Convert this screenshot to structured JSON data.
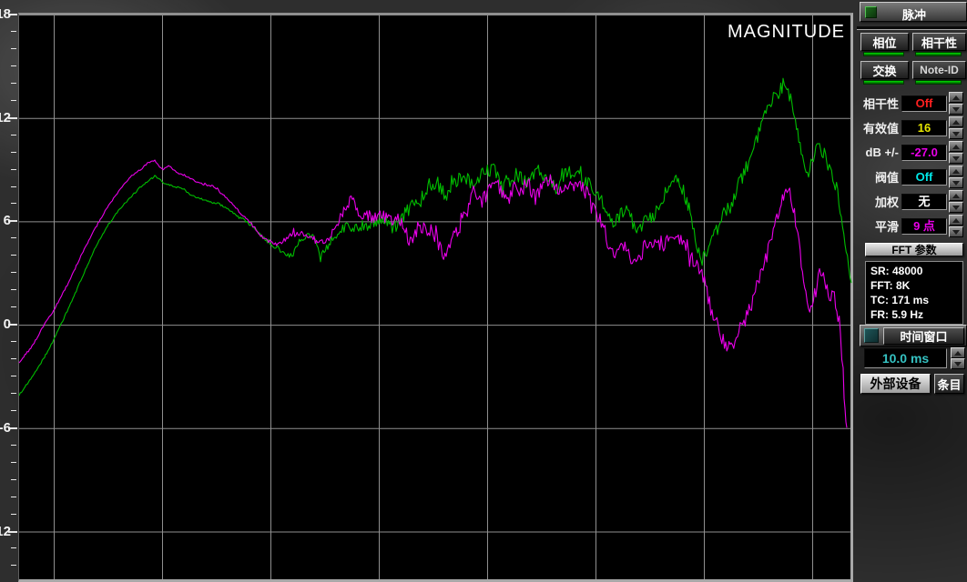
{
  "plot": {
    "title": "MAGNITUDE"
  },
  "chart_data": {
    "type": "line",
    "title": "MAGNITUDE",
    "grid": true,
    "legend": "none",
    "x_axis": {
      "scale": "log-frequency",
      "tick_labels_visible": false,
      "gridline_count": 8
    },
    "y_axis": {
      "unit": "dB",
      "major_tick_values": [
        18,
        12,
        6,
        0,
        -6,
        -12
      ],
      "major_step_db": 6,
      "minor_step_db": 1,
      "labels_clipped_to_last_digit": true
    },
    "series": [
      {
        "name": "magnitude-trace-green",
        "color": "#00bd00",
        "points_x_db": [
          [
            21,
            -4.0
          ],
          [
            35,
            -3.0
          ],
          [
            50,
            -1.7
          ],
          [
            60,
            -0.7
          ],
          [
            75,
            1.0
          ],
          [
            90,
            2.8
          ],
          [
            105,
            4.6
          ],
          [
            118,
            5.8
          ],
          [
            130,
            6.7
          ],
          [
            142,
            7.4
          ],
          [
            155,
            8.1
          ],
          [
            165,
            8.5
          ],
          [
            170,
            8.7
          ],
          [
            180,
            8.3
          ],
          [
            190,
            8.1
          ],
          [
            200,
            8.0
          ],
          [
            210,
            7.6
          ],
          [
            220,
            7.4
          ],
          [
            230,
            7.2
          ],
          [
            240,
            7.1
          ],
          [
            250,
            6.8
          ],
          [
            260,
            6.4
          ],
          [
            270,
            6.1
          ],
          [
            280,
            5.6
          ],
          [
            290,
            5.1
          ],
          [
            300,
            4.7
          ],
          [
            308,
            4.4
          ],
          [
            315,
            4.1
          ],
          [
            322,
            4.2
          ],
          [
            330,
            5.1
          ],
          [
            338,
            5.3
          ],
          [
            345,
            5.1
          ],
          [
            352,
            3.9
          ],
          [
            360,
            4.7
          ],
          [
            368,
            5.3
          ],
          [
            375,
            5.6
          ],
          [
            382,
            5.9
          ],
          [
            390,
            5.6
          ],
          [
            398,
            5.8
          ],
          [
            405,
            5.9
          ],
          [
            412,
            6.1
          ],
          [
            420,
            6.3
          ],
          [
            428,
            6.1
          ],
          [
            435,
            5.7
          ],
          [
            442,
            6.3
          ],
          [
            450,
            6.9
          ],
          [
            458,
            7.3
          ],
          [
            465,
            7.7
          ],
          [
            470,
            8.1
          ],
          [
            478,
            8.4
          ],
          [
            485,
            8.0
          ],
          [
            492,
            7.6
          ],
          [
            500,
            8.4
          ],
          [
            508,
            8.8
          ],
          [
            515,
            8.4
          ],
          [
            522,
            8.0
          ],
          [
            530,
            8.9
          ],
          [
            538,
            9.1
          ],
          [
            545,
            9.0
          ],
          [
            552,
            7.9
          ],
          [
            560,
            8.5
          ],
          [
            568,
            8.8
          ],
          [
            575,
            8.5
          ],
          [
            582,
            8.3
          ],
          [
            590,
            9.1
          ],
          [
            598,
            8.8
          ],
          [
            605,
            8.4
          ],
          [
            612,
            8.0
          ],
          [
            620,
            8.8
          ],
          [
            628,
            9.0
          ],
          [
            635,
            8.7
          ],
          [
            642,
            8.4
          ],
          [
            650,
            8.0
          ],
          [
            658,
            7.6
          ],
          [
            665,
            6.5
          ],
          [
            672,
            6.0
          ],
          [
            680,
            6.4
          ],
          [
            688,
            6.7
          ],
          [
            695,
            6.0
          ],
          [
            702,
            5.7
          ],
          [
            710,
            6.1
          ],
          [
            718,
            6.5
          ],
          [
            725,
            7.3
          ],
          [
            732,
            7.8
          ],
          [
            740,
            8.4
          ],
          [
            745,
            8.5
          ],
          [
            752,
            7.6
          ],
          [
            758,
            6.7
          ],
          [
            765,
            4.7
          ],
          [
            770,
            3.6
          ],
          [
            776,
            4.2
          ],
          [
            782,
            5.1
          ],
          [
            788,
            5.6
          ],
          [
            795,
            6.5
          ],
          [
            802,
            6.9
          ],
          [
            810,
            8.1
          ],
          [
            818,
            9.0
          ],
          [
            825,
            9.7
          ],
          [
            832,
            10.9
          ],
          [
            840,
            12.1
          ],
          [
            848,
            13.1
          ],
          [
            855,
            13.5
          ],
          [
            860,
            14.0
          ],
          [
            863,
            14.1
          ],
          [
            867,
            13.4
          ],
          [
            871,
            12.6
          ],
          [
            876,
            11.2
          ],
          [
            880,
            10.2
          ],
          [
            884,
            9.3
          ],
          [
            888,
            9.0
          ],
          [
            892,
            9.5
          ],
          [
            896,
            10.1
          ],
          [
            900,
            10.5
          ],
          [
            904,
            10.1
          ],
          [
            908,
            9.5
          ],
          [
            912,
            8.9
          ],
          [
            916,
            8.3
          ],
          [
            920,
            7.8
          ],
          [
            924,
            6.5
          ],
          [
            928,
            5.1
          ],
          [
            932,
            3.6
          ],
          [
            935,
            2.5
          ]
        ]
      },
      {
        "name": "magnitude-trace-magenta",
        "color": "#ea00ea",
        "points_x_db": [
          [
            21,
            -2.1
          ],
          [
            35,
            -1.2
          ],
          [
            50,
            0.2
          ],
          [
            60,
            1.0
          ],
          [
            75,
            2.5
          ],
          [
            90,
            4.2
          ],
          [
            105,
            5.7
          ],
          [
            118,
            6.9
          ],
          [
            130,
            7.8
          ],
          [
            142,
            8.6
          ],
          [
            155,
            9.1
          ],
          [
            163,
            9.5
          ],
          [
            170,
            9.6
          ],
          [
            178,
            9.1
          ],
          [
            185,
            9.3
          ],
          [
            195,
            8.9
          ],
          [
            205,
            8.7
          ],
          [
            215,
            8.4
          ],
          [
            225,
            8.2
          ],
          [
            235,
            8.1
          ],
          [
            245,
            7.6
          ],
          [
            255,
            7.1
          ],
          [
            265,
            6.5
          ],
          [
            275,
            6.0
          ],
          [
            285,
            5.3
          ],
          [
            295,
            4.9
          ],
          [
            305,
            4.7
          ],
          [
            312,
            5.0
          ],
          [
            320,
            5.3
          ],
          [
            330,
            5.4
          ],
          [
            340,
            5.3
          ],
          [
            350,
            4.7
          ],
          [
            360,
            4.9
          ],
          [
            370,
            6.0
          ],
          [
            380,
            6.9
          ],
          [
            387,
            7.4
          ],
          [
            395,
            6.3
          ],
          [
            403,
            6.5
          ],
          [
            412,
            6.2
          ],
          [
            420,
            6.4
          ],
          [
            428,
            6.0
          ],
          [
            437,
            6.2
          ],
          [
            445,
            5.5
          ],
          [
            452,
            4.8
          ],
          [
            460,
            5.8
          ],
          [
            468,
            5.6
          ],
          [
            476,
            5.2
          ],
          [
            483,
            4.7
          ],
          [
            490,
            4.0
          ],
          [
            497,
            5.1
          ],
          [
            505,
            5.8
          ],
          [
            512,
            6.5
          ],
          [
            520,
            7.8
          ],
          [
            528,
            7.2
          ],
          [
            535,
            7.6
          ],
          [
            543,
            8.4
          ],
          [
            550,
            7.9
          ],
          [
            558,
            7.1
          ],
          [
            565,
            8.1
          ],
          [
            572,
            7.6
          ],
          [
            580,
            8.3
          ],
          [
            588,
            7.4
          ],
          [
            595,
            8.0
          ],
          [
            603,
            8.6
          ],
          [
            610,
            8.1
          ],
          [
            618,
            7.6
          ],
          [
            625,
            8.4
          ],
          [
            633,
            7.9
          ],
          [
            640,
            8.1
          ],
          [
            648,
            7.3
          ],
          [
            655,
            6.5
          ],
          [
            663,
            5.8
          ],
          [
            670,
            4.0
          ],
          [
            678,
            4.4
          ],
          [
            685,
            4.7
          ],
          [
            693,
            4.0
          ],
          [
            700,
            3.6
          ],
          [
            708,
            4.7
          ],
          [
            715,
            4.9
          ],
          [
            722,
            4.6
          ],
          [
            730,
            4.8
          ],
          [
            738,
            5.2
          ],
          [
            745,
            5.1
          ],
          [
            752,
            4.7
          ],
          [
            760,
            3.9
          ],
          [
            768,
            3.3
          ],
          [
            775,
            2.3
          ],
          [
            782,
            0.7
          ],
          [
            790,
            -0.4
          ],
          [
            797,
            -1.1
          ],
          [
            803,
            -1.3
          ],
          [
            810,
            -0.5
          ],
          [
            817,
            0.2
          ],
          [
            824,
            1.0
          ],
          [
            831,
            2.5
          ],
          [
            838,
            3.2
          ],
          [
            845,
            4.7
          ],
          [
            852,
            6.0
          ],
          [
            858,
            7.2
          ],
          [
            863,
            7.9
          ],
          [
            866,
            8.0
          ],
          [
            870,
            7.1
          ],
          [
            875,
            5.7
          ],
          [
            880,
            3.6
          ],
          [
            885,
            2.0
          ],
          [
            888,
            0.8
          ],
          [
            892,
            1.5
          ],
          [
            896,
            2.1
          ],
          [
            900,
            3.1
          ],
          [
            903,
            3.2
          ],
          [
            907,
            2.3
          ],
          [
            911,
            1.5
          ],
          [
            915,
            1.8
          ],
          [
            919,
            1.2
          ],
          [
            923,
            -0.6
          ],
          [
            926,
            -2.8
          ],
          [
            928,
            -4.4
          ],
          [
            930,
            -5.9
          ]
        ]
      }
    ]
  },
  "sidebar": {
    "pulse_button": {
      "label": "脉冲",
      "indicator_color": "#1d6b1d"
    },
    "toggle_buttons": [
      {
        "label": "相位"
      },
      {
        "label": "相干性"
      },
      {
        "label": "交换"
      },
      {
        "label": "Note-ID"
      }
    ],
    "led_color": "#00c000",
    "value_rows": [
      {
        "label": "相干性",
        "value": "Off",
        "value_color": "#ff2020"
      },
      {
        "label": "有效值",
        "value": "16",
        "value_color": "#e6e600"
      },
      {
        "label": "dB +/-",
        "value": "-27.0",
        "value_color": "#e800e8"
      },
      {
        "label": "阀值",
        "value": "Off",
        "value_color": "#00e8e8"
      },
      {
        "label": "加权",
        "value": "无",
        "value_color": "#ffffff"
      },
      {
        "label": "平滑",
        "value": "9 点",
        "value_color": "#e800e8"
      }
    ],
    "fft_section": {
      "header": "FFT 参数",
      "info_lines": [
        "SR: 48000",
        "FFT: 8K",
        "TC: 171 ms",
        "FR: 5.9 Hz"
      ]
    },
    "time_window": {
      "label": "时间窗口",
      "value": "10.0 ms",
      "value_color": "#35c2c2",
      "indicator_color": "#1e5558"
    },
    "bottom_buttons": {
      "external_device": "外部设备",
      "entry": "条目"
    }
  }
}
